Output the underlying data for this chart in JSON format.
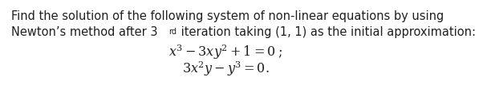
{
  "line1": "Find the solution of the following system of non-linear equations by using",
  "line2_pre": "Newton’s method after 3",
  "line2_sup": "rd",
  "line2_post": " iteration taking (1, 1) as the initial approximation:",
  "eq1": "$x^3-3xy^2+1=0\\;$;",
  "eq2": "$3x^2y-y^3=0.$",
  "background_color": "#ffffff",
  "text_color": "#231f20",
  "fontsize_body": 10.5,
  "fontsize_eq": 11.5,
  "fontsize_sup": 7.0
}
